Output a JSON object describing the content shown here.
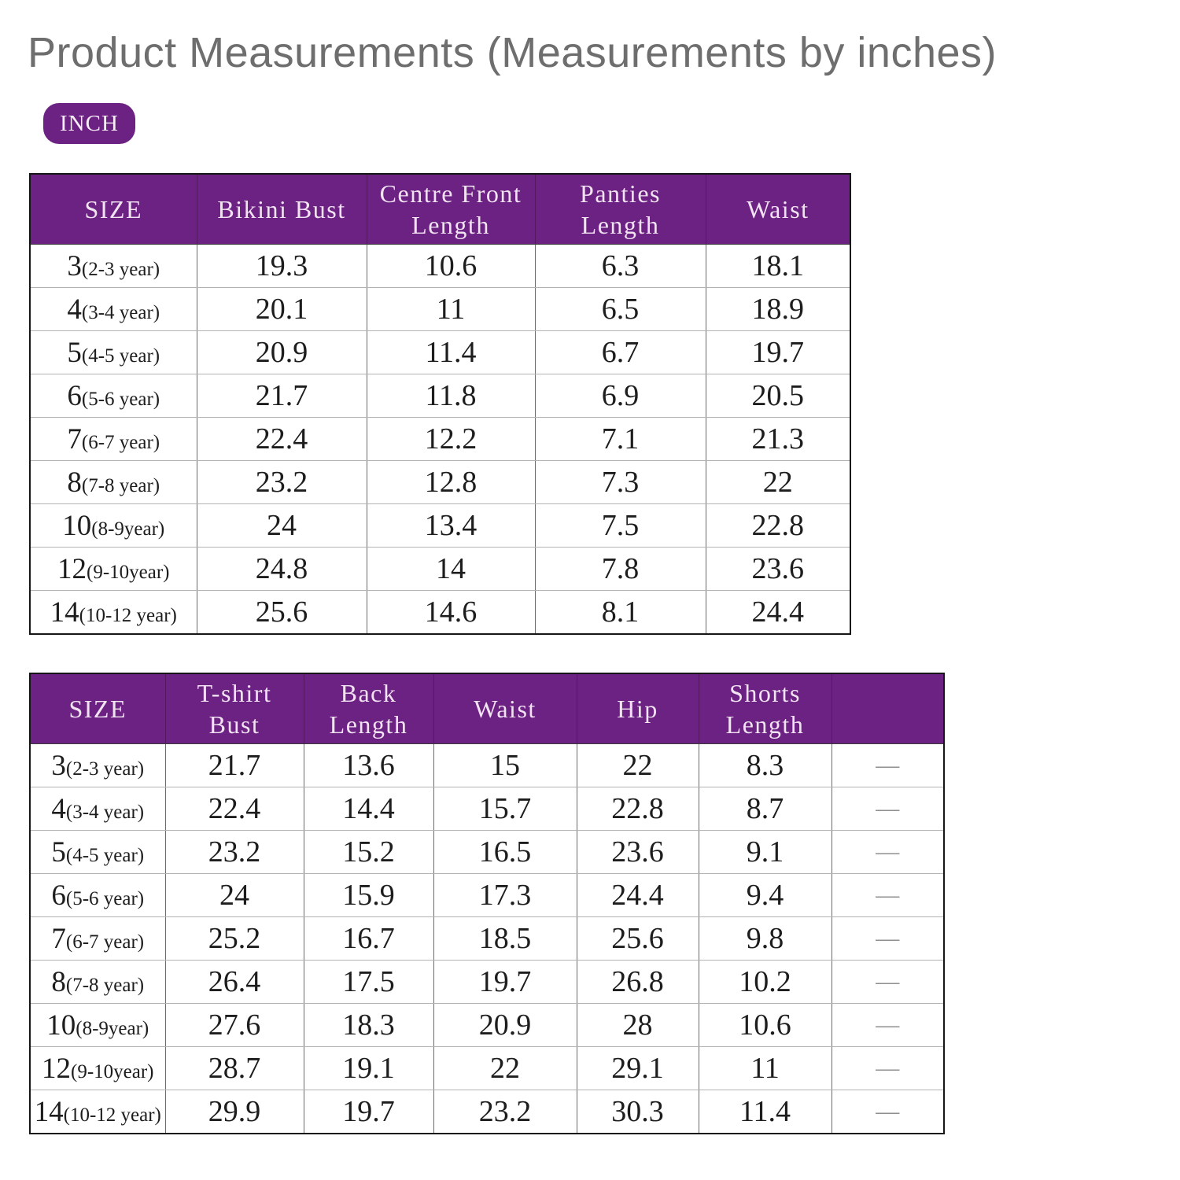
{
  "title": "Product Measurements (Measurements by inches)",
  "unit_badge": "INCH",
  "colors": {
    "header_purple": "#6C2282",
    "title_gray": "#6e6e6e",
    "dash_gray": "#8f8f8f"
  },
  "tables": [
    {
      "name": "bikini-measurements-table",
      "headers": [
        "SIZE",
        "Bikini Bust",
        "Centre Front Length",
        "Panties Length",
        "Waist"
      ],
      "rows": [
        {
          "size": "3",
          "age": "(2-3 year)",
          "values": [
            "19.3",
            "10.6",
            "6.3",
            "18.1"
          ]
        },
        {
          "size": "4",
          "age": "(3-4 year)",
          "values": [
            "20.1",
            "11",
            "6.5",
            "18.9"
          ]
        },
        {
          "size": "5",
          "age": "(4-5 year)",
          "values": [
            "20.9",
            "11.4",
            "6.7",
            "19.7"
          ]
        },
        {
          "size": "6",
          "age": "(5-6 year)",
          "values": [
            "21.7",
            "11.8",
            "6.9",
            "20.5"
          ]
        },
        {
          "size": "7",
          "age": "(6-7 year)",
          "values": [
            "22.4",
            "12.2",
            "7.1",
            "21.3"
          ]
        },
        {
          "size": "8",
          "age": "(7-8 year)",
          "values": [
            "23.2",
            "12.8",
            "7.3",
            "22"
          ]
        },
        {
          "size": "10",
          "age": "(8-9year)",
          "values": [
            "24",
            "13.4",
            "7.5",
            "22.8"
          ]
        },
        {
          "size": "12",
          "age": "(9-10year)",
          "values": [
            "24.8",
            "14",
            "7.8",
            "23.6"
          ]
        },
        {
          "size": "14",
          "age": "(10-12 year)",
          "values": [
            "25.6",
            "14.6",
            "8.1",
            "24.4"
          ]
        }
      ]
    },
    {
      "name": "tshirt-shorts-measurements-table",
      "headers": [
        "SIZE",
        "T-shirt Bust",
        "Back Length",
        "Waist",
        "Hip",
        "Shorts Length",
        ""
      ],
      "rows": [
        {
          "size": "3",
          "age": "(2-3 year)",
          "values": [
            "21.7",
            "13.6",
            "15",
            "22",
            "8.3",
            "—"
          ]
        },
        {
          "size": "4",
          "age": "(3-4 year)",
          "values": [
            "22.4",
            "14.4",
            "15.7",
            "22.8",
            "8.7",
            "—"
          ]
        },
        {
          "size": "5",
          "age": "(4-5 year)",
          "values": [
            "23.2",
            "15.2",
            "16.5",
            "23.6",
            "9.1",
            "—"
          ]
        },
        {
          "size": "6",
          "age": "(5-6 year)",
          "values": [
            "24",
            "15.9",
            "17.3",
            "24.4",
            "9.4",
            "—"
          ]
        },
        {
          "size": "7",
          "age": "(6-7 year)",
          "values": [
            "25.2",
            "16.7",
            "18.5",
            "25.6",
            "9.8",
            "—"
          ]
        },
        {
          "size": "8",
          "age": "(7-8 year)",
          "values": [
            "26.4",
            "17.5",
            "19.7",
            "26.8",
            "10.2",
            "—"
          ]
        },
        {
          "size": "10",
          "age": "(8-9year)",
          "values": [
            "27.6",
            "18.3",
            "20.9",
            "28",
            "10.6",
            "—"
          ]
        },
        {
          "size": "12",
          "age": "(9-10year)",
          "values": [
            "28.7",
            "19.1",
            "22",
            "29.1",
            "11",
            "—"
          ]
        },
        {
          "size": "14",
          "age": "(10-12 year)",
          "values": [
            "29.9",
            "19.7",
            "23.2",
            "30.3",
            "11.4",
            "—"
          ]
        }
      ]
    }
  ]
}
